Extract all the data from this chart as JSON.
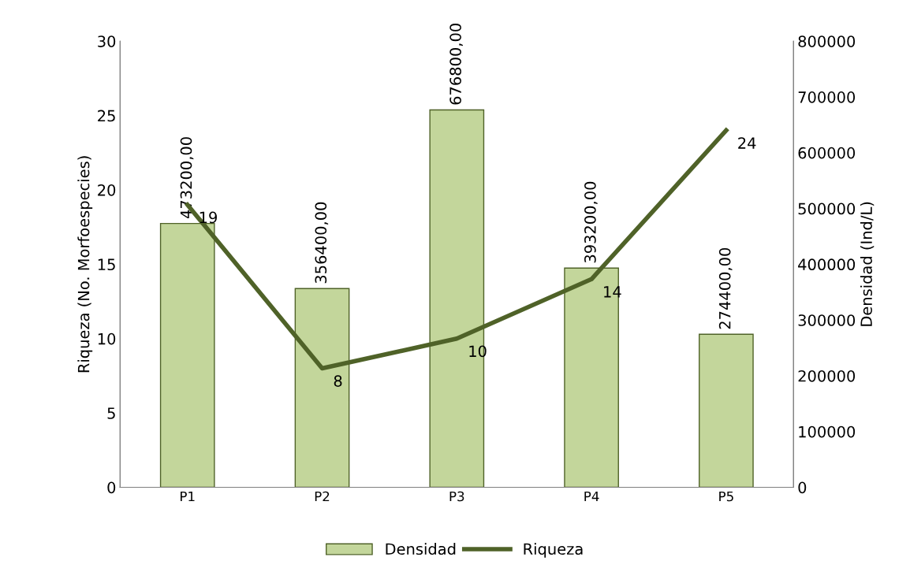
{
  "chart_data": {
    "type": "bar",
    "categories": [
      "P1",
      "P2",
      "P3",
      "P4",
      "P5"
    ],
    "ylabel": "Riqueza (No. Morfoespecies)",
    "y2label": "Densidad (Ind/L)",
    "ylim": [
      0,
      30
    ],
    "yticks": [
      0,
      5,
      10,
      15,
      20,
      25,
      30
    ],
    "y2lim": [
      0,
      800000
    ],
    "y2ticks": [
      0,
      100000,
      200000,
      300000,
      400000,
      500000,
      600000,
      700000,
      800000
    ],
    "series": [
      {
        "name": "Densidad",
        "axis": "y2",
        "color": "#c3d69b",
        "values": [
          473200,
          356400,
          676800,
          393200,
          274400
        ],
        "value_labels": [
          "473200,00",
          "356400,00",
          "676800,00",
          "393200,00",
          "274400,00"
        ]
      },
      {
        "name": "Riqueza",
        "type": "line",
        "axis": "y",
        "color": "#4f6228",
        "values": [
          19,
          8,
          10,
          14,
          24
        ],
        "value_labels": [
          "19",
          "8",
          "10",
          "14",
          "24"
        ]
      }
    ],
    "grid": false,
    "legend": "bottom",
    "marker": "none",
    "line_style": "solid"
  }
}
